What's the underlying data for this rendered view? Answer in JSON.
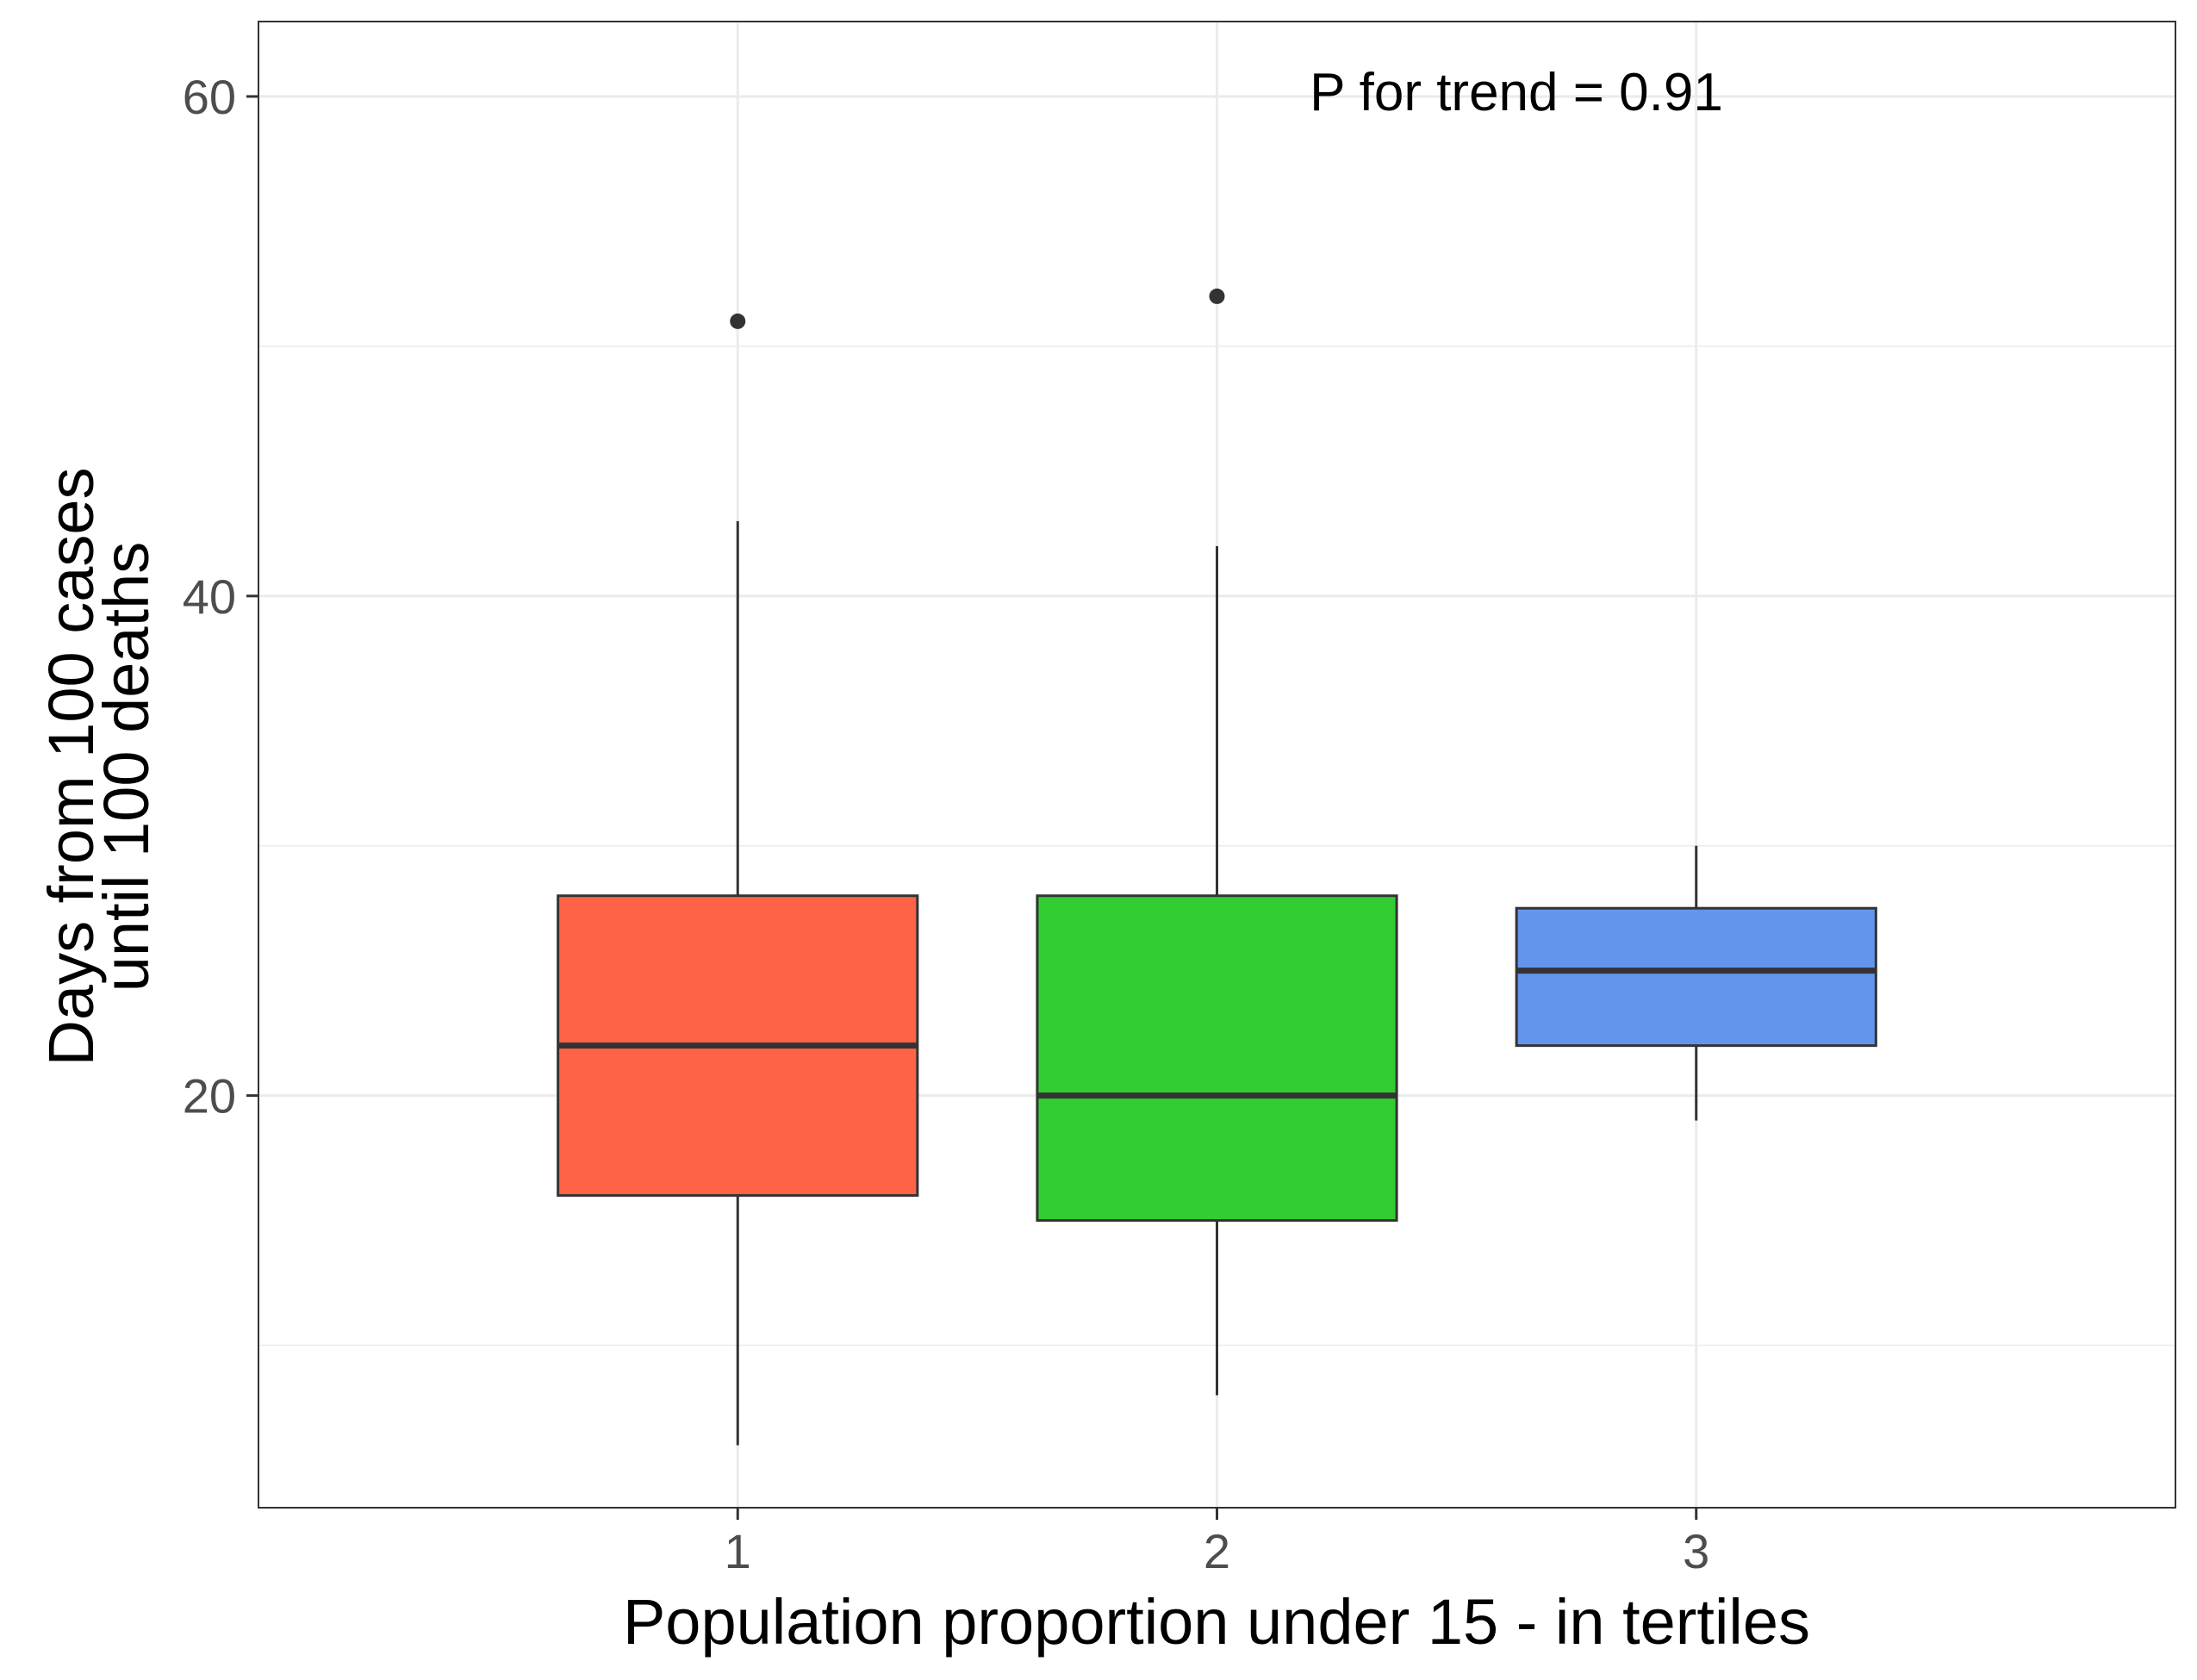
{
  "chart_data": {
    "type": "box",
    "xlabel": "Population proportion under 15 - in tertiles",
    "ylabel_lines": [
      "Days from 100 cases",
      "until 100 deaths"
    ],
    "annotation": "P for trend = 0.91",
    "ylim": [
      3.5,
      63
    ],
    "y_ticks": [
      20,
      40,
      60
    ],
    "y_minor_ticks": [
      10,
      30,
      50
    ],
    "grid": true,
    "categories": [
      "1",
      "2",
      "3"
    ],
    "boxes": [
      {
        "category": "1",
        "whisker_low": 6,
        "q1": 16,
        "median": 22,
        "q3": 28,
        "whisker_high": 43,
        "outliers": [
          51
        ],
        "color": "#FF6347"
      },
      {
        "category": "2",
        "whisker_low": 8,
        "q1": 15,
        "median": 20,
        "q3": 28,
        "whisker_high": 42,
        "outliers": [
          52
        ],
        "color": "#32CD32"
      },
      {
        "category": "3",
        "whisker_low": 19,
        "q1": 22,
        "median": 25,
        "q3": 27.5,
        "whisker_high": 30,
        "outliers": [],
        "color": "#6495ED"
      }
    ]
  }
}
